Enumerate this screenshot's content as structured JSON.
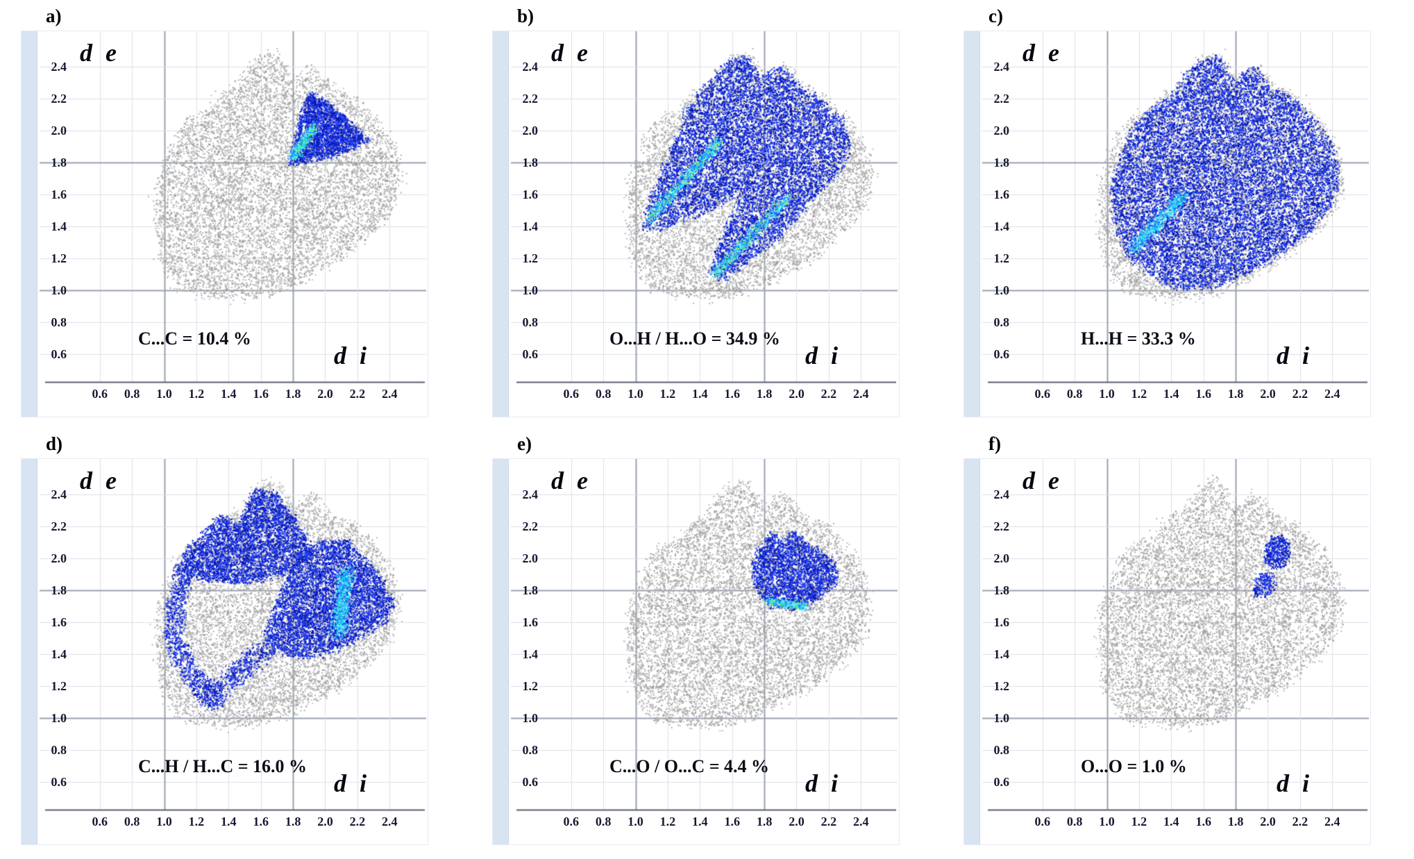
{
  "figure": {
    "background": "#ffffff",
    "axis": {
      "y_display": "d e",
      "x_display": "d i"
    },
    "panels": [
      {
        "label": "a)"
      },
      {
        "label": "b)"
      },
      {
        "label": "c)"
      },
      {
        "label": "d)"
      },
      {
        "label": "e)"
      },
      {
        "label": "f)"
      }
    ]
  },
  "colors": {
    "highlight_blue": "#1c3ae8",
    "hot_cyan": "#00d8ff",
    "surface_gray": "#b5b5b5",
    "left_strip": "#d9e4f3",
    "grid_light": "#dcdfe6",
    "grid_major": "#9aa0ad",
    "text": "#0b0b16"
  },
  "chart_data": {
    "type": "scatter",
    "subtype": "hirshfeld-2d-fingerprint",
    "xlabel": "di",
    "ylabel": "de",
    "xlim": [
      0.45,
      2.55
    ],
    "ylim": [
      0.45,
      2.55
    ],
    "ticks": [
      0.6,
      0.8,
      1.0,
      1.2,
      1.4,
      1.6,
      1.8,
      2.0,
      2.2,
      2.4
    ],
    "grid": true,
    "grid_emphasis": [
      1.0,
      1.8
    ],
    "surface_points": 8200,
    "edge_scatter_points": 340,
    "full_surface_outline": [
      [
        1.08,
        1.04
      ],
      [
        0.99,
        1.18
      ],
      [
        0.96,
        1.38
      ],
      [
        0.95,
        1.58
      ],
      [
        1.0,
        1.78
      ],
      [
        1.08,
        1.96
      ],
      [
        1.16,
        2.06
      ],
      [
        1.28,
        2.12
      ],
      [
        1.36,
        2.22
      ],
      [
        1.48,
        2.3
      ],
      [
        1.58,
        2.44
      ],
      [
        1.7,
        2.48
      ],
      [
        1.8,
        2.3
      ],
      [
        1.92,
        2.4
      ],
      [
        2.04,
        2.26
      ],
      [
        2.18,
        2.2
      ],
      [
        2.32,
        2.06
      ],
      [
        2.42,
        1.9
      ],
      [
        2.47,
        1.7
      ],
      [
        2.4,
        1.5
      ],
      [
        2.28,
        1.36
      ],
      [
        2.12,
        1.22
      ],
      [
        1.95,
        1.12
      ],
      [
        1.78,
        1.03
      ],
      [
        1.6,
        0.96
      ],
      [
        1.42,
        0.95
      ],
      [
        1.25,
        0.98
      ],
      [
        1.14,
        1.0
      ]
    ],
    "panels": [
      {
        "id": "a",
        "contact": "C...C",
        "percentage": 10.4,
        "label_text": "C...C = 10.4 %",
        "highlight": {
          "regions": [
            {
              "poly": [
                [
                  1.77,
                  1.78
                ],
                [
                  1.82,
                  1.95
                ],
                [
                  1.86,
                  2.12
                ],
                [
                  1.9,
                  2.24
                ],
                [
                  2.0,
                  2.18
                ],
                [
                  2.1,
                  2.1
                ],
                [
                  2.2,
                  2.0
                ],
                [
                  2.28,
                  1.94
                ],
                [
                  2.1,
                  1.86
                ],
                [
                  1.95,
                  1.82
                ]
              ],
              "points": 2600
            }
          ],
          "streaks": [
            {
              "from": [
                1.8,
                1.83
              ],
              "to": [
                1.93,
                2.02
              ],
              "points": 420,
              "spread": 0.03,
              "green": true
            }
          ]
        }
      },
      {
        "id": "b",
        "contact": "O...H / H...O",
        "percentage": 34.9,
        "label_text": "O...H / H...O = 34.9 %",
        "highlight": {
          "regions": [
            {
              "poly": [
                [
                  1.04,
                  1.38
                ],
                [
                  1.1,
                  1.6
                ],
                [
                  1.2,
                  1.84
                ],
                [
                  1.27,
                  2.0
                ],
                [
                  1.32,
                  2.14
                ],
                [
                  1.44,
                  2.28
                ],
                [
                  1.56,
                  2.42
                ],
                [
                  1.68,
                  2.47
                ],
                [
                  1.78,
                  2.33
                ],
                [
                  1.9,
                  2.41
                ],
                [
                  2.02,
                  2.27
                ],
                [
                  2.15,
                  2.2
                ],
                [
                  2.28,
                  2.08
                ],
                [
                  2.34,
                  1.94
                ],
                [
                  2.28,
                  1.76
                ],
                [
                  2.14,
                  1.6
                ],
                [
                  2.0,
                  1.45
                ],
                [
                  1.86,
                  1.3
                ],
                [
                  1.7,
                  1.18
                ],
                [
                  1.55,
                  1.06
                ],
                [
                  1.46,
                  1.1
                ],
                [
                  1.52,
                  1.3
                ],
                [
                  1.62,
                  1.5
                ],
                [
                  1.66,
                  1.62
                ],
                [
                  1.5,
                  1.52
                ],
                [
                  1.36,
                  1.46
                ],
                [
                  1.2,
                  1.4
                ]
              ],
              "points": 9500
            }
          ],
          "streaks": [
            {
              "from": [
                1.08,
                1.44
              ],
              "to": [
                1.52,
                1.93
              ],
              "points": 700,
              "spread": 0.035,
              "green": true
            },
            {
              "from": [
                1.49,
                1.1
              ],
              "to": [
                1.95,
                1.58
              ],
              "points": 650,
              "spread": 0.035,
              "green": true
            }
          ]
        }
      },
      {
        "id": "c",
        "contact": "H...H",
        "percentage": 33.3,
        "label_text": "H...H = 33.3 %",
        "highlight": {
          "regions": [
            {
              "poly": [
                [
                  1.12,
                  1.22
                ],
                [
                  1.04,
                  1.42
                ],
                [
                  1.02,
                  1.62
                ],
                [
                  1.08,
                  1.82
                ],
                [
                  1.15,
                  2.0
                ],
                [
                  1.24,
                  2.1
                ],
                [
                  1.35,
                  2.18
                ],
                [
                  1.46,
                  2.29
                ],
                [
                  1.57,
                  2.43
                ],
                [
                  1.69,
                  2.47
                ],
                [
                  1.79,
                  2.31
                ],
                [
                  1.91,
                  2.4
                ],
                [
                  2.03,
                  2.26
                ],
                [
                  2.16,
                  2.19
                ],
                [
                  2.3,
                  2.05
                ],
                [
                  2.41,
                  1.88
                ],
                [
                  2.45,
                  1.7
                ],
                [
                  2.38,
                  1.51
                ],
                [
                  2.26,
                  1.37
                ],
                [
                  2.1,
                  1.24
                ],
                [
                  1.94,
                  1.14
                ],
                [
                  1.77,
                  1.06
                ],
                [
                  1.6,
                  1.0
                ],
                [
                  1.44,
                  1.0
                ],
                [
                  1.3,
                  1.08
                ]
              ],
              "points": 13000
            }
          ],
          "streaks": [
            {
              "from": [
                1.16,
                1.26
              ],
              "to": [
                1.48,
                1.6
              ],
              "points": 600,
              "spread": 0.04,
              "green": false
            }
          ]
        }
      },
      {
        "id": "d",
        "contact": "C...H / H...C",
        "percentage": 16.0,
        "label_text": "C...H / H...C = 16.0 %",
        "highlight": {
          "regions": [
            {
              "poly": [
                [
                  1.08,
                  1.92
                ],
                [
                  1.14,
                  2.06
                ],
                [
                  1.24,
                  2.14
                ],
                [
                  1.33,
                  2.27
                ],
                [
                  1.46,
                  2.21
                ],
                [
                  1.57,
                  2.44
                ],
                [
                  1.7,
                  2.4
                ],
                [
                  1.83,
                  2.22
                ],
                [
                  1.93,
                  2.05
                ],
                [
                  1.8,
                  1.92
                ],
                [
                  1.62,
                  1.86
                ],
                [
                  1.44,
                  1.84
                ],
                [
                  1.25,
                  1.86
                ]
              ],
              "points": 4200
            },
            {
              "poly": [
                [
                  1.62,
                  1.5
                ],
                [
                  1.7,
                  1.74
                ],
                [
                  1.82,
                  1.97
                ],
                [
                  1.97,
                  2.12
                ],
                [
                  2.15,
                  2.1
                ],
                [
                  2.3,
                  1.94
                ],
                [
                  2.43,
                  1.74
                ],
                [
                  2.37,
                  1.6
                ],
                [
                  2.22,
                  1.5
                ],
                [
                  2.06,
                  1.42
                ],
                [
                  1.9,
                  1.37
                ],
                [
                  1.75,
                  1.4
                ]
              ],
              "points": 5200
            },
            {
              "poly": [
                [
                  1.28,
                  1.05
                ],
                [
                  1.16,
                  1.18
                ],
                [
                  1.06,
                  1.34
                ],
                [
                  1.0,
                  1.48
                ],
                [
                  1.02,
                  1.72
                ],
                [
                  1.08,
                  1.96
                ],
                [
                  1.18,
                  1.92
                ],
                [
                  1.13,
                  1.7
                ],
                [
                  1.12,
                  1.5
                ],
                [
                  1.18,
                  1.36
                ],
                [
                  1.3,
                  1.22
                ],
                [
                  1.38,
                  1.1
                ]
              ],
              "points": 900
            },
            {
              "poly": [
                [
                  1.3,
                  1.05
                ],
                [
                  1.45,
                  1.18
                ],
                [
                  1.6,
                  1.32
                ],
                [
                  1.72,
                  1.44
                ],
                [
                  1.62,
                  1.5
                ],
                [
                  1.48,
                  1.4
                ],
                [
                  1.34,
                  1.26
                ],
                [
                  1.22,
                  1.14
                ]
              ],
              "points": 500
            }
          ],
          "streaks": [
            {
              "from": [
                2.08,
                1.52
              ],
              "to": [
                2.13,
                1.92
              ],
              "points": 700,
              "spread": 0.05,
              "green": false
            }
          ]
        }
      },
      {
        "id": "e",
        "contact": "C...O / O...C",
        "percentage": 4.4,
        "label_text": "C...O / O...C = 4.4 %",
        "highlight": {
          "regions": [
            {
              "poly": [
                [
                  1.72,
                  1.92
                ],
                [
                  1.76,
                  2.04
                ],
                [
                  1.84,
                  2.16
                ],
                [
                  1.92,
                  2.1
                ],
                [
                  1.99,
                  2.17
                ],
                [
                  2.07,
                  2.08
                ],
                [
                  2.16,
                  2.04
                ],
                [
                  2.24,
                  1.97
                ],
                [
                  2.26,
                  1.86
                ],
                [
                  2.12,
                  1.74
                ],
                [
                  1.98,
                  1.67
                ],
                [
                  1.84,
                  1.7
                ],
                [
                  1.76,
                  1.8
                ]
              ],
              "points": 2600
            }
          ],
          "streaks": [
            {
              "from": [
                1.82,
                1.73
              ],
              "to": [
                2.06,
                1.7
              ],
              "points": 320,
              "spread": 0.025,
              "green": true
            }
          ]
        }
      },
      {
        "id": "f",
        "contact": "O...O",
        "percentage": 1.0,
        "label_text": "O...O = 1.0 %",
        "highlight": {
          "regions": [
            {
              "poly": [
                [
                  1.97,
                  2.0
                ],
                [
                  2.0,
                  2.1
                ],
                [
                  2.07,
                  2.15
                ],
                [
                  2.15,
                  2.08
                ],
                [
                  2.12,
                  1.97
                ],
                [
                  2.03,
                  1.93
                ]
              ],
              "points": 420
            },
            {
              "poly": [
                [
                  1.91,
                  1.8
                ],
                [
                  1.94,
                  1.89
                ],
                [
                  2.02,
                  1.91
                ],
                [
                  2.06,
                  1.83
                ],
                [
                  1.99,
                  1.76
                ],
                [
                  1.93,
                  1.75
                ]
              ],
              "points": 200
            }
          ],
          "streaks": []
        }
      }
    ]
  }
}
